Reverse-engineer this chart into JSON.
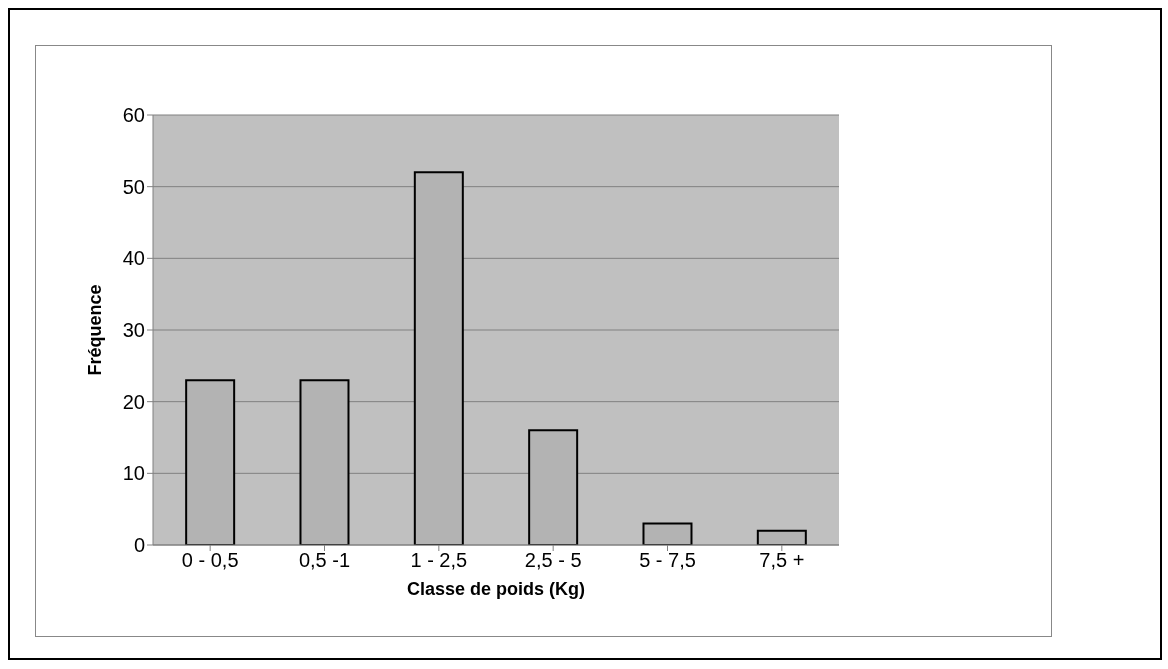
{
  "chart_data": {
    "type": "bar",
    "xlabel": "Classe de poids (Kg)",
    "ylabel": "Fréquence",
    "categories": [
      "0 - 0,5",
      "0,5 -1",
      "1 - 2,5",
      "2,5 - 5",
      "5 - 7,5",
      "7,5 +"
    ],
    "values": [
      23,
      23,
      52,
      16,
      3,
      2
    ],
    "color": "#b3b3b3",
    "ylim": [
      0,
      60
    ],
    "yticks": [
      0,
      10,
      20,
      30,
      40,
      50,
      60
    ],
    "grid": "y",
    "legend": false
  }
}
